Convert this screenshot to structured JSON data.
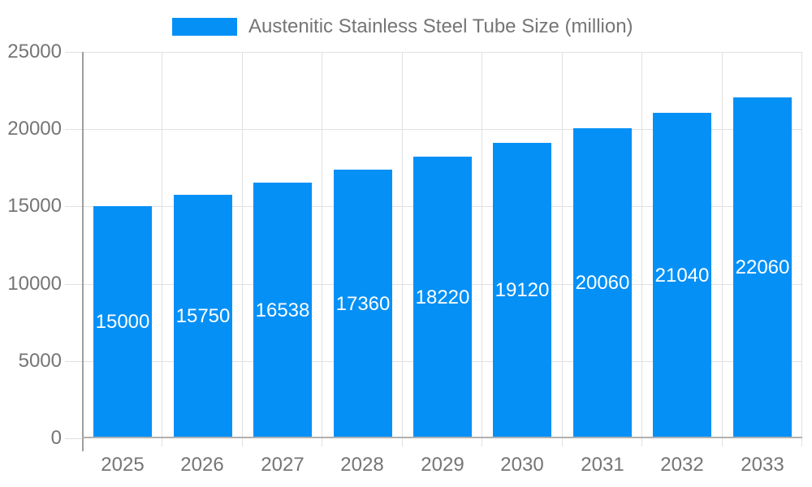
{
  "legend": {
    "label": "Austenitic Stainless Steel Tube Size (million)"
  },
  "chart_data": {
    "type": "bar",
    "title": "Austenitic Stainless Steel Tube Size (million)",
    "categories": [
      "2025",
      "2026",
      "2027",
      "2028",
      "2029",
      "2030",
      "2031",
      "2032",
      "2033"
    ],
    "values": [
      15000,
      15750,
      16538,
      17360,
      18220,
      19120,
      20060,
      21040,
      22060
    ],
    "xlabel": "",
    "ylabel": "",
    "ylim": [
      0,
      25000
    ],
    "yticks": [
      0,
      5000,
      10000,
      15000,
      20000,
      25000
    ],
    "grid": true,
    "legend_position": "top",
    "value_labels": "inside-center",
    "colors": {
      "bar": "#0590f6",
      "value_label": "#ffffff",
      "axis_text": "#757575",
      "gridline": "#e0e0e0",
      "axis_line": "#9e9e9e",
      "baseline": "#b0b0b0"
    }
  }
}
